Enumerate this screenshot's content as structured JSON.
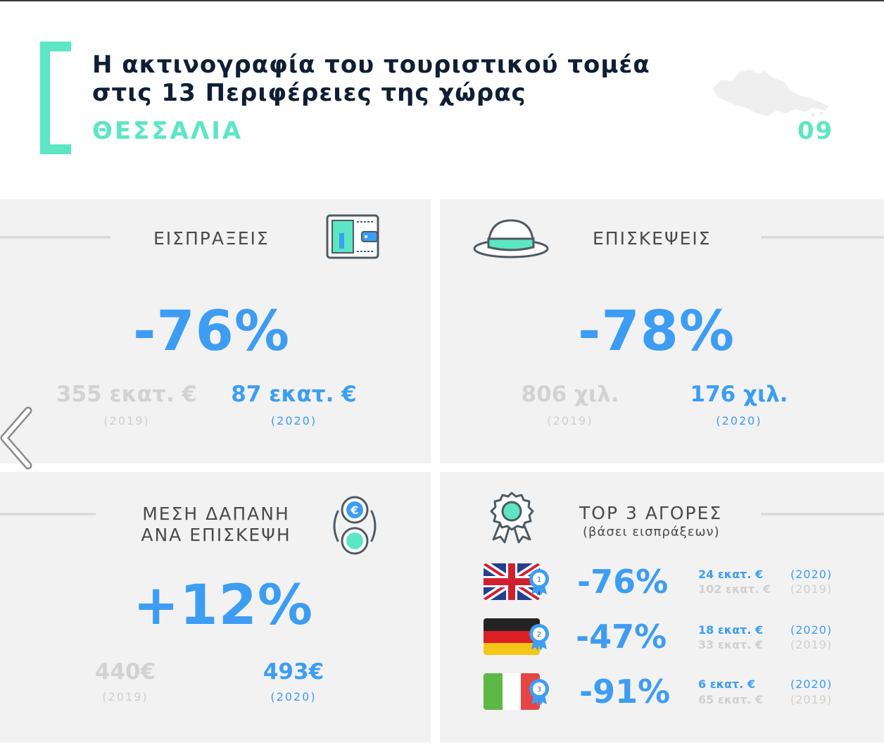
{
  "header": {
    "title_line1": "Η ακτινογραφία του τουριστικού τομέα",
    "title_line2": "στις 13 Περιφέρειες της χώρας",
    "region": "ΘΕΣΣΑΛΙΑ",
    "page_number": "09"
  },
  "colors": {
    "accent_teal": "#5ce6c4",
    "accent_blue": "#3d9df2",
    "dark_text": "#0f1e33",
    "panel_bg": "#f2f2f2"
  },
  "receipts": {
    "label": "ΕΙΣΠΡΑΞΕΙΣ",
    "icon": "wallet-icon",
    "change": "-76%",
    "value_2019": "355 εκατ. €",
    "year_2019": "(2019)",
    "value_2020": "87 εκατ. €",
    "year_2020": "(2020)"
  },
  "visits": {
    "label": "ΕΠΙΣΚΕΨΕΙΣ",
    "icon": "hat-icon",
    "change": "-78%",
    "value_2019": "806 χιλ.",
    "year_2019": "(2019)",
    "value_2020": "176 χιλ.",
    "year_2020": "(2020)"
  },
  "avg_spend": {
    "label_line1": "ΜΕΣΗ ΔΑΠΑΝΗ",
    "label_line2": "ΑΝΑ ΕΠΙΣΚΕΨΗ",
    "icon": "euro-coins-icon",
    "change": "+12%",
    "value_2019": "440€",
    "year_2019": "(2019)",
    "value_2020": "493€",
    "year_2020": "(2020)"
  },
  "top_markets": {
    "label": "TOP 3 ΑΓΟΡΕΣ",
    "sublabel": "(βάσει εισπράξεων)",
    "icon": "award-ribbon-icon",
    "items": [
      {
        "flag": "uk-flag-icon",
        "rank": "1",
        "change": "-76%",
        "value_2020": "24 εκατ. €",
        "year_2020": "(2020)",
        "value_2019": "102 εκατ. €",
        "year_2019": "(2019)"
      },
      {
        "flag": "germany-flag-icon",
        "rank": "2",
        "change": "-47%",
        "value_2020": "18 εκατ. €",
        "year_2020": "(2020)",
        "value_2019": "33 εκατ. €",
        "year_2019": "(2019)"
      },
      {
        "flag": "italy-flag-icon",
        "rank": "3",
        "change": "-91%",
        "value_2020": "6 εκατ. €",
        "year_2020": "(2020)",
        "value_2019": "65 εκατ. €",
        "year_2019": "(2019)"
      }
    ]
  },
  "nav": {
    "prev_icon": "chevron-left-icon"
  }
}
